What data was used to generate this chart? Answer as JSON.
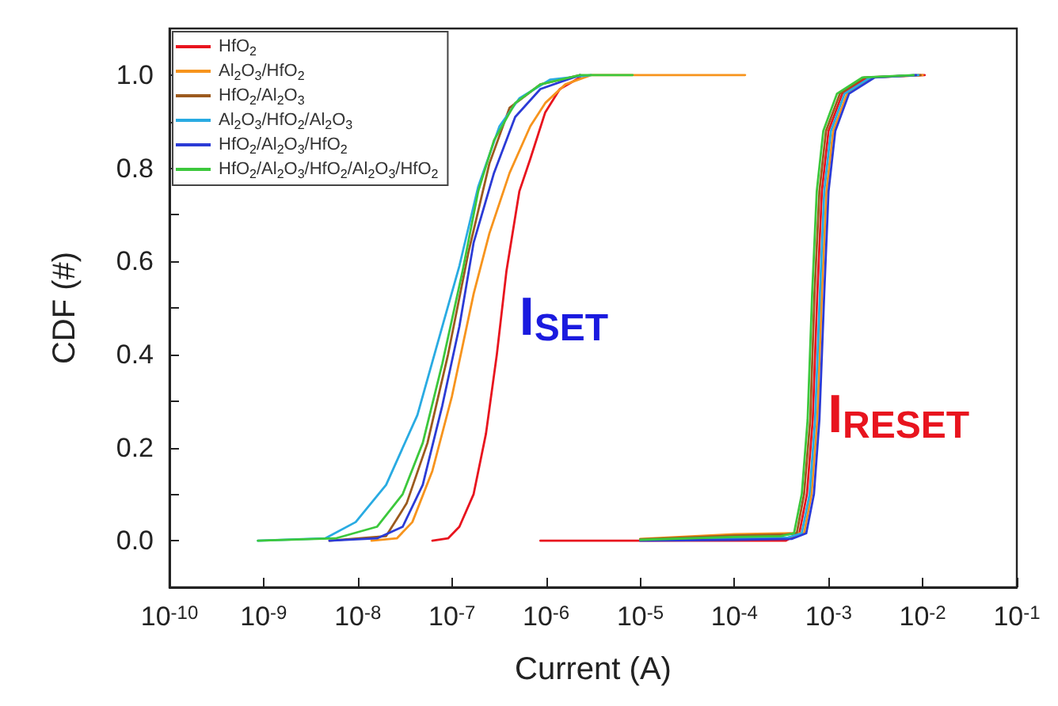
{
  "chart_data": {
    "type": "line",
    "xlabel": "Current (A)",
    "ylabel": "CDF (#)",
    "log": "x",
    "grid": false,
    "legend": "top left",
    "marker": "none",
    "line_style": "solid",
    "xlim": [
      1e-10,
      0.1
    ],
    "xticks": [
      {
        "value": 1e-10,
        "label": "10$^{-10}$"
      },
      {
        "value": 1e-09,
        "label": "10$^{-9}$"
      },
      {
        "value": 1e-08,
        "label": "10$^{-8}$"
      },
      {
        "value": 1e-07,
        "label": "10$^{-7}$"
      },
      {
        "value": 1e-06,
        "label": "10$^{-6}$"
      },
      {
        "value": 1e-05,
        "label": "10$^{-5}$"
      },
      {
        "value": 0.0001,
        "label": "10$^{-4}$"
      },
      {
        "value": 0.001,
        "label": "10$^{-3}$"
      },
      {
        "value": 0.01,
        "label": "10$^{-2}$"
      },
      {
        "value": 0.1,
        "label": "10$^{-1}$"
      }
    ],
    "ylim": [
      -0.1,
      1.1
    ],
    "yticks": [
      {
        "value": 0,
        "label": "0.0"
      },
      {
        "value": 0.1,
        "label": null
      },
      {
        "value": 0.2,
        "label": "0.2"
      },
      {
        "value": 0.3,
        "label": null
      },
      {
        "value": 0.4,
        "label": "0.4"
      },
      {
        "value": 0.5,
        "label": null
      },
      {
        "value": 0.6,
        "label": "0.6"
      },
      {
        "value": 0.7,
        "label": null
      },
      {
        "value": 0.8,
        "label": "0.8"
      },
      {
        "value": 0.9,
        "label": null
      },
      {
        "value": 1.0,
        "label": "1.0"
      }
    ],
    "annotations": [
      "I$_{SET}$",
      "I$_{RESET}$"
    ],
    "series": [
      {
        "name": "HfO$_{2}$",
        "color": "#e8141e",
        "x": [
          6.2e-08,
          9.1e-08,
          1.2e-07,
          1.7e-07,
          2.3e-07,
          3e-07,
          3.8e-07,
          5.2e-07,
          6.8e-07,
          9.8e-07,
          1.4e-06,
          2.3e-06,
          null,
          8.7e-07,
          1e-05,
          0.00035,
          0.00049,
          0.00059,
          0.00068,
          0.00076,
          0.00085,
          0.001,
          0.0014,
          0.0026,
          0.0105
        ],
        "values": [
          0,
          0.005,
          0.03,
          0.1,
          0.23,
          0.4,
          0.58,
          0.75,
          0.82,
          0.92,
          0.97,
          0.995,
          null,
          0,
          0,
          0.0,
          0.016,
          0.1,
          0.26,
          0.53,
          0.75,
          0.88,
          0.96,
          0.995,
          1.0
        ]
      },
      {
        "name": "Al$_{2}$O$_{3}$/HfO$_{2}$",
        "color": "#f7941d",
        "x": [
          1.4e-08,
          2.6e-08,
          3.8e-08,
          6.2e-08,
          1e-07,
          1.7e-07,
          2.5e-07,
          4.1e-07,
          6.8e-07,
          9.8e-07,
          1.6e-06,
          3e-06,
          0.00013,
          null,
          1e-05,
          0.0001,
          0.00039,
          0.00055,
          0.00066,
          0.00076,
          0.00085,
          0.00095,
          0.00112,
          0.00157,
          0.0029,
          0.01
        ],
        "values": [
          0,
          0.005,
          0.04,
          0.15,
          0.31,
          0.53,
          0.66,
          0.79,
          0.89,
          0.94,
          0.98,
          1.0,
          1.0,
          null,
          0.004,
          0.014,
          0.016,
          0.016,
          0.1,
          0.26,
          0.53,
          0.75,
          0.88,
          0.96,
          0.995,
          1.0
        ]
      },
      {
        "name": "HfO$_{2}$/Al$_{2}$O$_{3}$",
        "color": "#9c5a1e",
        "x": [
          5e-09,
          2e-08,
          3.3e-08,
          5.5e-08,
          9.1e-08,
          1.5e-07,
          2.5e-07,
          4.1e-07,
          8.7e-07,
          2.3e-06,
          null,
          1e-05,
          0.0001,
          0.00033,
          0.00046,
          0.00055,
          0.00064,
          0.00071,
          0.0008,
          0.00094,
          0.00132,
          0.0024,
          0.0095
        ],
        "values": [
          0,
          0.01,
          0.08,
          0.21,
          0.4,
          0.62,
          0.81,
          0.93,
          0.98,
          1.0,
          null,
          0.003,
          0.011,
          0.013,
          0.016,
          0.1,
          0.26,
          0.53,
          0.75,
          0.88,
          0.96,
          0.995,
          1.0
        ]
      },
      {
        "name": "Al$_{2}$O$_{3}$/HfO$_{2}$/Al$_{2}$O$_{3}$",
        "color": "#29abe2",
        "x": [
          8.7e-10,
          4.5e-09,
          9.5e-09,
          2e-08,
          4.3e-08,
          7.9e-08,
          1.2e-07,
          1.9e-07,
          3.2e-07,
          5.2e-07,
          1.1e-06,
          3e-06,
          null,
          1e-05,
          0.0001,
          0.00037,
          0.00052,
          0.00063,
          0.00072,
          0.00081,
          0.0009,
          0.00106,
          0.00148,
          0.0028,
          0.009
        ],
        "values": [
          0,
          0.005,
          0.04,
          0.12,
          0.27,
          0.46,
          0.59,
          0.76,
          0.89,
          0.95,
          0.99,
          1.0,
          null,
          0.001,
          0.005,
          0.007,
          0.016,
          0.1,
          0.26,
          0.53,
          0.75,
          0.88,
          0.96,
          0.995,
          1.0
        ]
      },
      {
        "name": "HfO$_{2}$/Al$_{2}$O$_{3}$/HfO$_{2}$",
        "color": "#2b3bd6",
        "x": [
          5e-09,
          1.6e-08,
          3e-08,
          4.9e-08,
          7.9e-08,
          1.2e-07,
          1.7e-07,
          2.8e-07,
          4.7e-07,
          8.7e-07,
          2.3e-06,
          null,
          1e-05,
          0.0001,
          0.00041,
          0.00058,
          0.0007,
          0.0008,
          0.0009,
          0.001,
          0.00118,
          0.00165,
          0.0031,
          0.0085
        ],
        "values": [
          0,
          0.005,
          0.03,
          0.12,
          0.29,
          0.46,
          0.64,
          0.79,
          0.91,
          0.97,
          1.0,
          null,
          0,
          0.002,
          0.004,
          0.016,
          0.1,
          0.26,
          0.53,
          0.75,
          0.88,
          0.96,
          0.995,
          1.0
        ]
      },
      {
        "name": "HfO$_{2}$/Al$_{2}$O$_{3}$/HfO$_{2}$/Al$_{2}$O$_{3}$/HfO$_{2}$",
        "color": "#3cc83c",
        "x": [
          8.7e-10,
          5.8e-09,
          1.6e-08,
          3e-08,
          4.9e-08,
          7.9e-08,
          1.3e-07,
          1.9e-07,
          2.8e-07,
          4.7e-07,
          8.7e-07,
          2.3e-06,
          8.3e-06,
          null,
          1e-05,
          0.0001,
          0.00031,
          0.00043,
          0.00052,
          0.0006,
          0.00067,
          0.00075,
          0.00088,
          0.00123,
          0.0023,
          0.008
        ],
        "values": [
          0,
          0.005,
          0.03,
          0.1,
          0.21,
          0.38,
          0.58,
          0.75,
          0.86,
          0.94,
          0.98,
          1.0,
          1.0,
          null,
          0.002,
          0.008,
          0.01,
          0.016,
          0.1,
          0.26,
          0.53,
          0.75,
          0.88,
          0.96,
          0.995,
          1.0
        ]
      }
    ]
  }
}
